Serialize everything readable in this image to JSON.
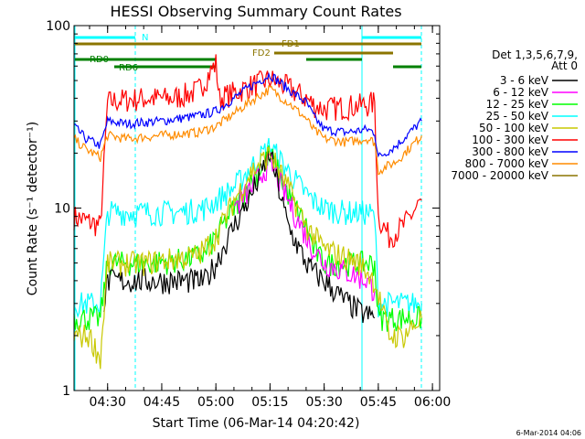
{
  "chart_data": {
    "type": "line",
    "title": "HESSI Observing Summary Count Rates",
    "xlabel": "Start Time (06-Mar-14 04:20:42)",
    "ylabel": "Count Rate (s⁻¹ detector⁻¹)",
    "y_scale": "log",
    "ylim": [
      1,
      100
    ],
    "x_ticks": [
      "04:30",
      "04:45",
      "05:00",
      "05:15",
      "05:30",
      "05:45",
      "06:00"
    ],
    "y_ticks": [
      "1",
      "10",
      "100"
    ],
    "legend": {
      "position": "right",
      "header": [
        "Det 1,3,5,6,7,9,",
        "Att 0"
      ],
      "entries": [
        {
          "label": "3 - 6 keV",
          "color": "#000000"
        },
        {
          "label": "6 - 12 keV",
          "color": "#ff00ff"
        },
        {
          "label": "12 - 25 keV",
          "color": "#00ff00"
        },
        {
          "label": "25 - 50 keV",
          "color": "#00ffff"
        },
        {
          "label": "50 - 100 keV",
          "color": "#c8c800"
        },
        {
          "label": "100 - 300 keV",
          "color": "#ff0000"
        },
        {
          "label": "300 - 800 keV",
          "color": "#0000ff"
        },
        {
          "label": "800 - 7000 keV",
          "color": "#ff8c00"
        },
        {
          "label": "7000 - 20000 keV",
          "color": "#8b7500"
        }
      ]
    },
    "flags": [
      {
        "label": "N",
        "color": "#00ffff"
      },
      {
        "label": "FD1",
        "color": "#8b7500"
      },
      {
        "label": "FD2",
        "color": "#8b7500"
      },
      {
        "label": "RD0",
        "color": "#008000"
      },
      {
        "label": "RD6",
        "color": "#008000"
      }
    ],
    "series": [
      {
        "color": "#ff0000",
        "x": [
          "04:20:42",
          "04:28",
          "04:30",
          "04:33",
          "04:40",
          "04:48",
          "04:55",
          "05:00",
          "05:01",
          "05:05",
          "05:10",
          "05:15",
          "05:20",
          "05:25",
          "05:27",
          "05:30",
          "05:36",
          "05:42",
          "05:44",
          "05:45",
          "05:48",
          "05:52",
          "05:57"
        ],
        "y": [
          9,
          8,
          38,
          39,
          40,
          40,
          44,
          62,
          40,
          43,
          47,
          51,
          46,
          40,
          37,
          35,
          36,
          37,
          38,
          9,
          7,
          8,
          11
        ]
      },
      {
        "color": "#0000ff",
        "x": [
          "04:20:42",
          "04:24",
          "04:28",
          "04:30",
          "04:35",
          "04:45",
          "04:55",
          "05:00",
          "05:05",
          "05:10",
          "05:15",
          "05:20",
          "05:25",
          "05:27",
          "05:30",
          "05:36",
          "05:42",
          "05:44",
          "05:45",
          "05:50",
          "05:57"
        ],
        "y": [
          28,
          24,
          22,
          30,
          29,
          30,
          32,
          34,
          40,
          47,
          54,
          45,
          38,
          32,
          27,
          26,
          27,
          26,
          19,
          22,
          30
        ]
      },
      {
        "color": "#ff8c00",
        "x": [
          "04:20:42",
          "04:24",
          "04:28",
          "04:30",
          "04:35",
          "04:45",
          "04:55",
          "05:00",
          "05:05",
          "05:10",
          "05:15",
          "05:20",
          "05:25",
          "05:27",
          "05:30",
          "05:36",
          "05:42",
          "05:44",
          "05:45",
          "05:50",
          "05:57"
        ],
        "y": [
          24,
          21,
          19,
          25,
          24,
          25,
          26,
          28,
          33,
          39,
          45,
          38,
          31,
          27,
          24,
          23,
          24,
          23,
          16,
          18,
          25
        ]
      },
      {
        "color": "#00ffff",
        "x": [
          "04:20:42",
          "04:28",
          "04:30",
          "04:40",
          "04:50",
          "04:57",
          "05:00",
          "05:05",
          "05:10",
          "05:15",
          "05:20",
          "05:25",
          "05:27",
          "05:30",
          "05:36",
          "05:42",
          "05:44",
          "05:45",
          "05:57"
        ],
        "y": [
          3,
          3,
          9.5,
          9.5,
          9.5,
          10,
          11,
          13,
          17,
          22,
          16,
          12,
          11,
          10,
          9.5,
          9.5,
          9,
          3,
          3
        ]
      },
      {
        "color": "#00ff00",
        "x": [
          "04:20:42",
          "04:28",
          "04:30",
          "04:40",
          "04:50",
          "04:57",
          "05:00",
          "05:05",
          "05:10",
          "05:15",
          "05:20",
          "05:25",
          "05:27",
          "05:30",
          "05:36",
          "05:42",
          "05:44",
          "05:45",
          "05:57"
        ],
        "y": [
          2.5,
          2.5,
          5,
          5,
          5.2,
          5.6,
          7,
          10,
          14,
          20,
          12,
          8,
          6,
          5,
          5,
          5,
          5,
          2.5,
          2.5
        ]
      },
      {
        "color": "#ff00ff",
        "x": [
          "05:05",
          "05:10",
          "05:15",
          "05:20",
          "05:25",
          "05:27",
          "05:30",
          "05:36",
          "05:42",
          "05:44"
        ],
        "y": [
          10,
          13,
          18,
          11,
          7,
          6,
          5,
          4.5,
          4,
          3.5
        ]
      },
      {
        "color": "#000000",
        "x": [
          "04:29",
          "04:30",
          "04:40",
          "04:57",
          "05:00",
          "05:05",
          "05:10",
          "05:15",
          "05:20",
          "05:25",
          "05:27",
          "05:30",
          "05:35",
          "05:40",
          "05:44"
        ],
        "y": [
          3,
          4,
          4,
          4,
          5,
          8,
          12,
          20,
          8,
          5,
          4.5,
          4,
          3.2,
          2.7,
          2.5
        ]
      },
      {
        "color": "#c8c800",
        "x": [
          "04:20:42",
          "04:25",
          "04:28",
          "04:30",
          "04:40",
          "04:55",
          "05:00",
          "05:05",
          "05:10",
          "05:15",
          "05:20",
          "05:25",
          "05:30",
          "05:40",
          "05:44",
          "05:48",
          "05:52",
          "05:57"
        ],
        "y": [
          2,
          2,
          1.5,
          5,
          5,
          5.5,
          7,
          11,
          16,
          20,
          13,
          8,
          6,
          5,
          4,
          2,
          2,
          2.5
        ]
      }
    ]
  },
  "stamp": "6-Mar-2014 04:06"
}
